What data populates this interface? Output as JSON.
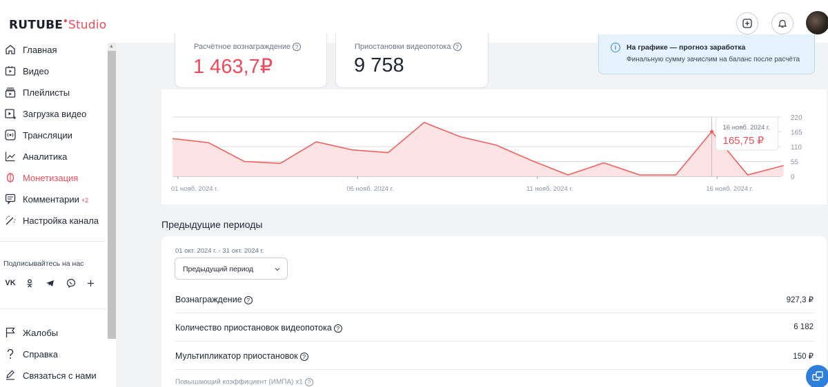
{
  "header": {
    "logo_brand": "RUTUBE",
    "logo_product": "Studio",
    "upload_icon": "plus-square-icon",
    "notifications_icon": "bell-icon"
  },
  "sidebar": {
    "items": [
      {
        "label": "Главная",
        "icon": "home-icon"
      },
      {
        "label": "Видео",
        "icon": "video-icon"
      },
      {
        "label": "Плейлисты",
        "icon": "playlist-icon"
      },
      {
        "label": "Загрузка видео",
        "icon": "upload-video-icon"
      },
      {
        "label": "Трансляции",
        "icon": "broadcast-icon"
      },
      {
        "label": "Аналитика",
        "icon": "analytics-icon"
      },
      {
        "label": "Монетизация",
        "icon": "monetization-icon",
        "active": true
      },
      {
        "label": "Комментарии",
        "icon": "comments-icon",
        "badge": "+2"
      },
      {
        "label": "Настройка канала",
        "icon": "magic-wand-icon"
      }
    ],
    "follow_label": "Подписывайтесь на нас",
    "socials": [
      "vk-icon",
      "ok-icon",
      "telegram-icon",
      "viber-icon",
      "plus-icon"
    ],
    "bottom_items": [
      {
        "label": "Жалобы",
        "icon": "flag-icon"
      },
      {
        "label": "Справка",
        "icon": "help-icon"
      },
      {
        "label": "Связаться с нами",
        "icon": "edit-icon"
      }
    ]
  },
  "stats": {
    "reward_label": "Расчётное вознаграждение",
    "reward_value": "1 463,7₽",
    "suspensions_label": "Приостановки видеопотока",
    "suspensions_value": "9 758"
  },
  "info": {
    "title": "На графике — прогноз заработка",
    "text": "Финальную сумму зачислим на баланс после расчёта"
  },
  "chart_data": {
    "type": "area",
    "x_tick_labels": [
      "01 нояб. 2024 г.",
      "06 нояб. 2024 г.",
      "11 нояб. 2024 г.",
      "16 нояб. 2024 г."
    ],
    "x_tick_days": [
      1,
      6,
      11,
      16
    ],
    "y_tick_labels": [
      "0",
      "55",
      "110",
      "165",
      "220"
    ],
    "ylim": [
      0,
      220
    ],
    "values": [
      {
        "day": 0.85,
        "y": 140
      },
      {
        "day": 1.85,
        "y": 125
      },
      {
        "day": 2.85,
        "y": 55
      },
      {
        "day": 3.85,
        "y": 48
      },
      {
        "day": 4.85,
        "y": 128
      },
      {
        "day": 5.85,
        "y": 98
      },
      {
        "day": 6.85,
        "y": 88
      },
      {
        "day": 7.85,
        "y": 200
      },
      {
        "day": 8.85,
        "y": 147
      },
      {
        "day": 9.85,
        "y": 116
      },
      {
        "day": 10.85,
        "y": 58
      },
      {
        "day": 11.85,
        "y": 5
      },
      {
        "day": 12.85,
        "y": 50
      },
      {
        "day": 13.85,
        "y": 5
      },
      {
        "day": 14.85,
        "y": 5
      },
      {
        "day": 15.85,
        "y": 165.75
      },
      {
        "day": 16.85,
        "y": 5
      },
      {
        "day": 17.85,
        "y": 40
      }
    ],
    "tooltip": {
      "date": "16 нояб. 2024 г.",
      "value": "165,75 ₽"
    },
    "line_color": "#f0605f",
    "fill_color": "#fde3e3"
  },
  "previous": {
    "title": "Предыдущие периоды",
    "range": "01 окт. 2024 г. - 31 окт. 2024 г.",
    "select_value": "Предыдущий период",
    "rows": [
      {
        "label": "Вознаграждение",
        "value": "927,3 ₽"
      },
      {
        "label": "Количество приостановок видеопотока",
        "value": "6 182"
      },
      {
        "label": "Мультипликатор приостановок",
        "value": "150 ₽"
      }
    ],
    "sub_label": "Повышающий коэффициент (ИМПА) x1"
  },
  "colors": {
    "accent": "#f04a5a",
    "info_blue": "#3b8ee5",
    "fab_blue": "#2f7fda"
  }
}
